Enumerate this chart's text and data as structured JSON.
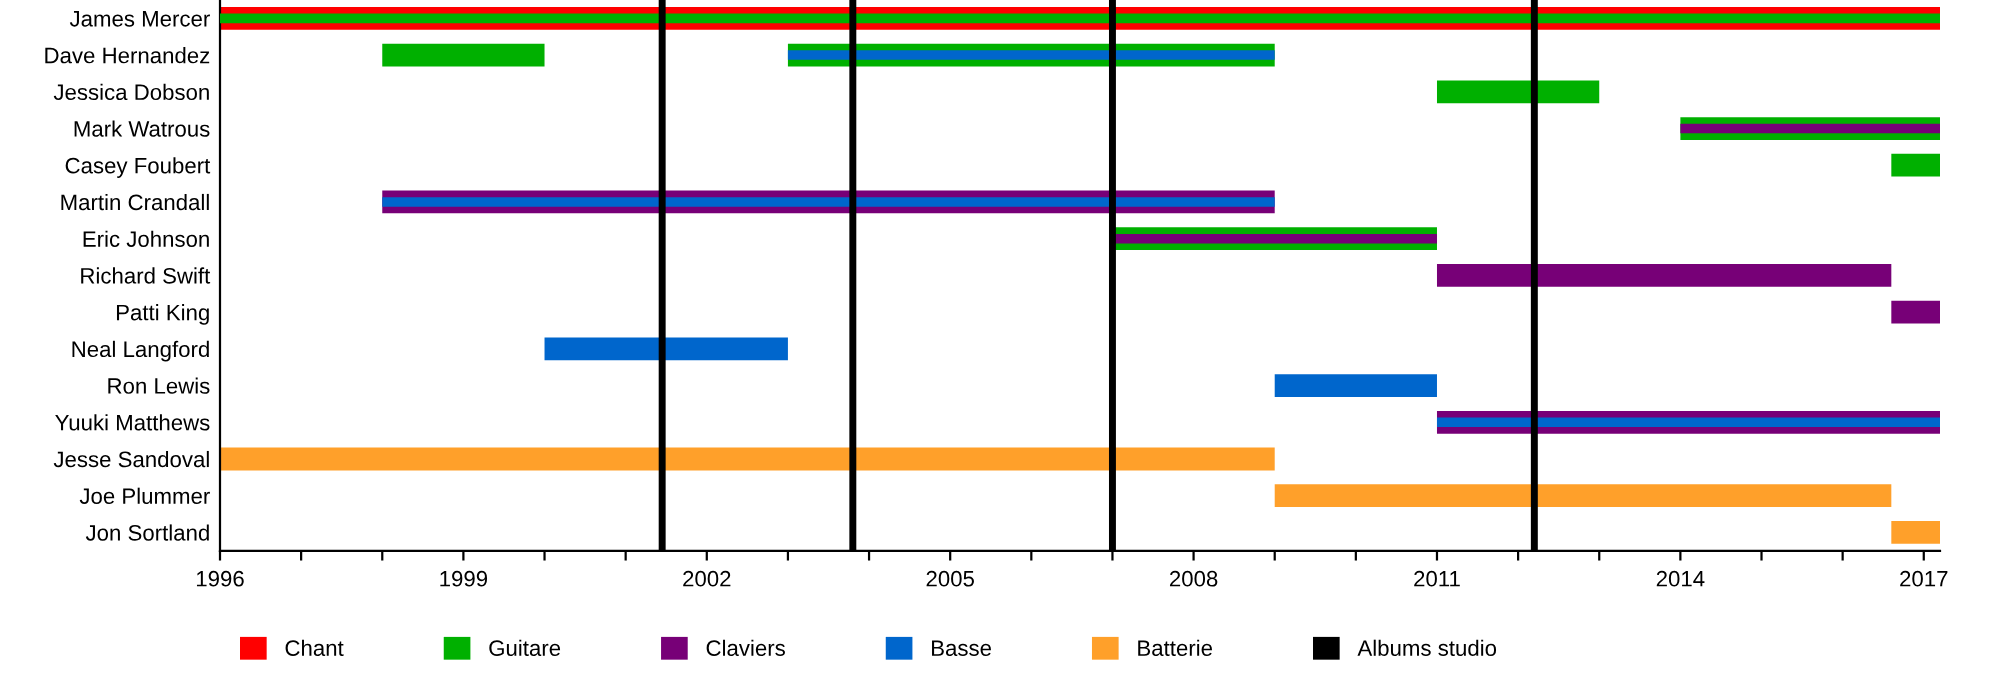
{
  "chart_data": {
    "type": "bar",
    "orientation": "horizontal",
    "categories": [
      "James Mercer",
      "Dave Hernandez",
      "Jessica Dobson",
      "Mark Watrous",
      "Casey Foubert",
      "Martin Crandall",
      "Eric Johnson",
      "Richard Swift",
      "Patti King",
      "Neal Langford",
      "Ron Lewis",
      "Yuuki Matthews",
      "Jesse Sandoval",
      "Joe Plummer",
      "Jon Sortland"
    ],
    "series": [
      {
        "name": "Chant",
        "color": "#ff0000",
        "base": [
          1996,
          null,
          null,
          null,
          null,
          null,
          null,
          null,
          null,
          null,
          null,
          null,
          null,
          null,
          null
        ],
        "values": [
          21.2,
          null,
          null,
          null,
          null,
          null,
          null,
          null,
          null,
          null,
          null,
          null,
          null,
          null,
          null
        ]
      },
      {
        "name": "Guitare",
        "color": "#00b000",
        "base": [
          1996,
          1998,
          2011,
          2014,
          2016.6,
          null,
          2007,
          null,
          null,
          null,
          null,
          null,
          null,
          null,
          null
        ],
        "values": [
          21.2,
          2,
          2,
          3.2,
          0.6,
          null,
          4,
          null,
          null,
          null,
          null,
          null,
          null,
          null,
          null
        ]
      },
      {
        "color": "#00b000",
        "base": [
          null,
          2003,
          null,
          null,
          null,
          null,
          null,
          null,
          null,
          null,
          null,
          null,
          null,
          null,
          null
        ],
        "values": [
          null,
          6,
          null,
          null,
          null,
          null,
          null,
          null,
          null,
          null,
          null,
          null,
          null,
          null,
          null
        ]
      },
      {
        "name": "Claviers",
        "color": "#770077",
        "base": [
          null,
          null,
          null,
          2014,
          null,
          1998,
          2007,
          2011,
          2016.6,
          null,
          null,
          2011,
          null,
          null,
          null
        ],
        "values": [
          null,
          null,
          null,
          3.2,
          null,
          11,
          4,
          5.6,
          0.6,
          null,
          null,
          6.2,
          null,
          null,
          null
        ]
      },
      {
        "name": "Basse",
        "color": "#0066cc",
        "base": [
          null,
          2003,
          null,
          null,
          null,
          1998,
          null,
          null,
          null,
          2000,
          2009,
          2011,
          null,
          null,
          null
        ],
        "values": [
          null,
          6,
          null,
          null,
          null,
          11,
          null,
          null,
          null,
          3,
          2,
          6.2,
          null,
          null,
          null
        ]
      },
      {
        "name": "Batterie",
        "color": "#ffa02a",
        "base": [
          null,
          null,
          null,
          null,
          null,
          null,
          null,
          null,
          null,
          null,
          null,
          null,
          1996,
          2009,
          2016.6
        ],
        "values": [
          null,
          null,
          null,
          null,
          null,
          null,
          null,
          null,
          null,
          null,
          null,
          null,
          13,
          7.6,
          0.6
        ]
      }
    ],
    "ref_lines": [
      {
        "axis": "x",
        "value": 2001.45,
        "label": "Albums studio",
        "color": "#000000"
      },
      {
        "axis": "x",
        "value": 2003.8,
        "color": "#000000"
      },
      {
        "axis": "x",
        "value": 2007.0,
        "color": "#000000"
      },
      {
        "axis": "x",
        "value": 2012.2,
        "color": "#000000"
      }
    ],
    "xlim": [
      1996,
      2017.2
    ],
    "xticks": [
      1996,
      {
        "value": 1997,
        "label": null
      },
      {
        "value": 1998,
        "label": null
      },
      1999,
      {
        "value": 2000,
        "label": null
      },
      {
        "value": 2001,
        "label": null
      },
      2002,
      {
        "value": 2003,
        "label": null
      },
      {
        "value": 2004,
        "label": null
      },
      2005,
      {
        "value": 2006,
        "label": null
      },
      {
        "value": 2007,
        "label": null
      },
      2008,
      {
        "value": 2009,
        "label": null
      },
      {
        "value": 2010,
        "label": null
      },
      2011,
      {
        "value": 2012,
        "label": null
      },
      {
        "value": 2013,
        "label": null
      },
      2014,
      {
        "value": 2015,
        "label": null
      },
      {
        "value": 2016,
        "label": null
      },
      2017
    ],
    "grid": false,
    "legend": "bottom"
  }
}
